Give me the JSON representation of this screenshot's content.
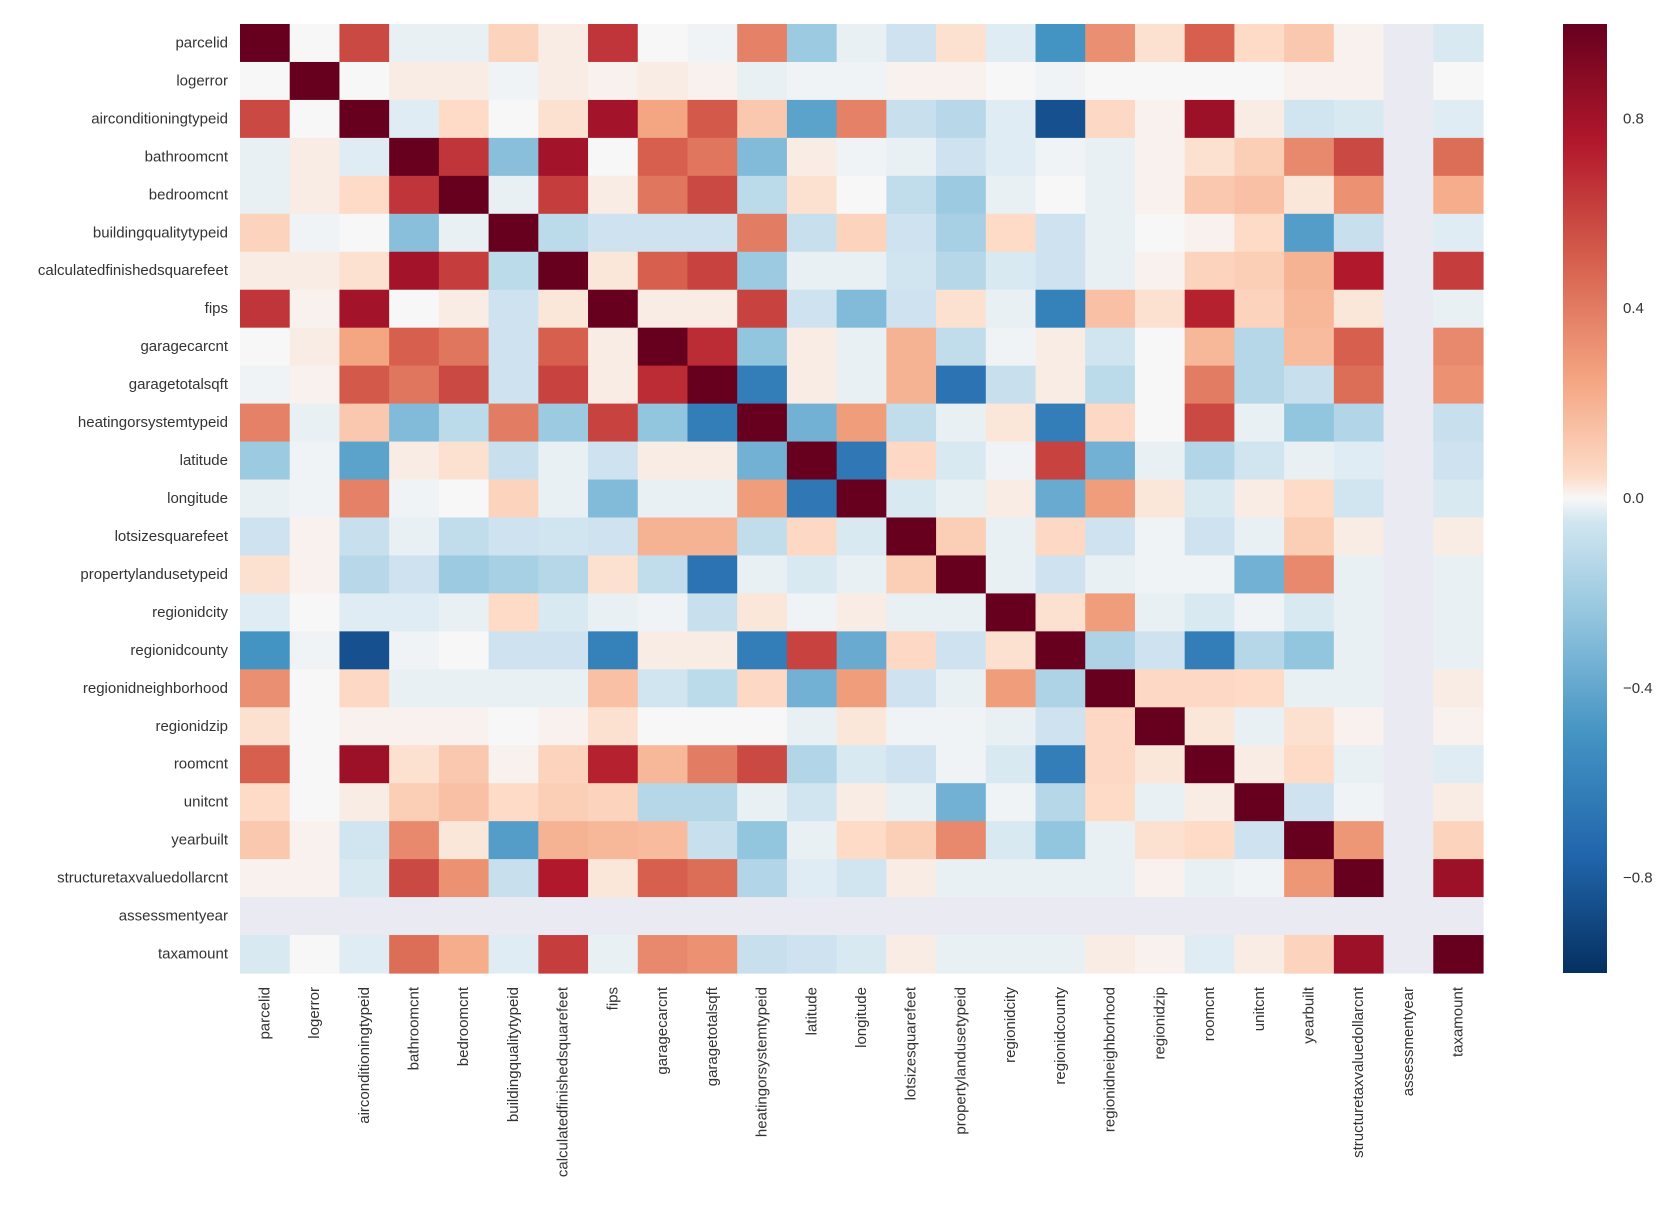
{
  "chart_data": {
    "type": "heatmap",
    "title": "",
    "xlabel": "",
    "ylabel": "",
    "labels": [
      "parcelid",
      "logerror",
      "airconditioningtypeid",
      "bathroomcnt",
      "bedroomcnt",
      "buildingqualitytypeid",
      "calculatedfinishedsquarefeet",
      "fips",
      "garagecarcnt",
      "garagetotalsqft",
      "heatingorsystemtypeid",
      "latitude",
      "longitude",
      "lotsizesquarefeet",
      "propertylandusetypeid",
      "regionidcity",
      "regionidcounty",
      "regionidneighborhood",
      "regionidzip",
      "roomcnt",
      "unitcnt",
      "yearbuilt",
      "structuretaxvaluedollarcnt",
      "assessmentyear",
      "taxamount"
    ],
    "colormap": "RdBu_r",
    "vmin": -1,
    "vmax": 1,
    "colorbar_ticks": [
      0.8,
      0.4,
      0.0,
      -0.4,
      -0.8
    ],
    "colorbar_tick_labels": [
      "0.8",
      "0.4",
      "0.0",
      "−0.4",
      "−0.8"
    ],
    "missing_color": "#eaeaf2",
    "missing_cells": "row and column for assessmentyear",
    "values": [
      [
        1.0,
        0.0,
        0.58,
        -0.02,
        -0.02,
        0.08,
        0.02,
        0.65,
        0.0,
        -0.01,
        0.38,
        -0.22,
        -0.02,
        -0.06,
        0.04,
        -0.03,
        -0.5,
        0.33,
        0.04,
        0.5,
        0.05,
        0.12,
        0.01,
        null,
        -0.04
      ],
      [
        0.0,
        1.0,
        0.0,
        0.02,
        0.02,
        -0.01,
        0.02,
        0.01,
        0.02,
        0.01,
        -0.02,
        -0.01,
        -0.01,
        0.01,
        0.01,
        0.0,
        -0.01,
        0.0,
        0.0,
        0.0,
        0.0,
        0.01,
        0.01,
        null,
        0.0
      ],
      [
        0.58,
        0.0,
        1.0,
        -0.03,
        0.05,
        0.0,
        0.04,
        0.8,
        0.25,
        0.52,
        0.12,
        -0.42,
        0.38,
        -0.08,
        -0.13,
        -0.03,
        -0.85,
        0.06,
        0.01,
        0.82,
        0.02,
        -0.05,
        -0.04,
        null,
        -0.03
      ],
      [
        -0.02,
        0.02,
        -0.03,
        1.0,
        0.65,
        -0.28,
        0.8,
        0.0,
        0.5,
        0.42,
        -0.3,
        0.02,
        -0.01,
        -0.02,
        -0.06,
        -0.03,
        -0.01,
        -0.02,
        0.01,
        0.04,
        0.1,
        0.35,
        0.58,
        null,
        0.45
      ],
      [
        -0.02,
        0.02,
        0.05,
        0.65,
        1.0,
        -0.02,
        0.62,
        0.02,
        0.42,
        0.58,
        -0.12,
        0.04,
        0.0,
        -0.1,
        -0.22,
        -0.02,
        0.0,
        -0.02,
        0.01,
        0.12,
        0.15,
        0.03,
        0.32,
        null,
        0.22
      ],
      [
        0.08,
        -0.01,
        0.0,
        -0.28,
        -0.02,
        1.0,
        -0.12,
        -0.06,
        -0.06,
        -0.06,
        0.4,
        -0.08,
        0.08,
        -0.06,
        -0.18,
        0.05,
        -0.06,
        -0.02,
        0.0,
        0.01,
        0.05,
        -0.45,
        -0.08,
        null,
        -0.03
      ],
      [
        0.02,
        0.02,
        0.04,
        0.8,
        0.62,
        -0.12,
        1.0,
        0.03,
        0.5,
        0.6,
        -0.22,
        -0.02,
        -0.02,
        -0.05,
        -0.14,
        -0.04,
        -0.06,
        -0.02,
        0.01,
        0.08,
        0.1,
        0.2,
        0.75,
        null,
        0.62
      ],
      [
        0.65,
        0.01,
        0.8,
        0.0,
        0.02,
        -0.06,
        0.03,
        1.0,
        0.02,
        0.02,
        0.6,
        -0.06,
        -0.3,
        -0.06,
        0.04,
        -0.02,
        -0.6,
        0.15,
        0.04,
        0.72,
        0.08,
        0.18,
        0.03,
        null,
        -0.02
      ],
      [
        0.0,
        0.02,
        0.25,
        0.5,
        0.42,
        -0.06,
        0.5,
        0.02,
        1.0,
        0.68,
        -0.25,
        0.02,
        -0.02,
        0.2,
        -0.1,
        -0.01,
        0.02,
        -0.05,
        0.0,
        0.18,
        -0.14,
        0.17,
        0.5,
        null,
        0.35
      ],
      [
        -0.01,
        0.01,
        0.52,
        0.42,
        0.58,
        -0.06,
        0.6,
        0.02,
        0.68,
        1.0,
        -0.62,
        0.02,
        -0.02,
        0.2,
        -0.68,
        -0.08,
        0.02,
        -0.12,
        0.0,
        0.4,
        -0.14,
        -0.08,
        0.45,
        null,
        0.32
      ],
      [
        0.38,
        -0.02,
        0.12,
        -0.3,
        -0.12,
        0.4,
        -0.22,
        0.6,
        -0.25,
        -0.62,
        1.0,
        -0.35,
        0.28,
        -0.1,
        -0.02,
        0.03,
        -0.62,
        0.06,
        0.0,
        0.58,
        -0.02,
        -0.25,
        -0.15,
        null,
        -0.08
      ],
      [
        -0.22,
        -0.01,
        -0.42,
        0.02,
        0.04,
        -0.08,
        -0.02,
        -0.06,
        0.02,
        0.02,
        -0.35,
        1.0,
        -0.65,
        0.06,
        -0.04,
        -0.01,
        0.6,
        -0.35,
        -0.02,
        -0.15,
        -0.05,
        -0.02,
        -0.03,
        null,
        -0.06
      ],
      [
        -0.02,
        -0.01,
        0.38,
        -0.01,
        0.0,
        0.08,
        -0.02,
        -0.3,
        -0.02,
        -0.02,
        0.28,
        -0.65,
        1.0,
        -0.04,
        -0.02,
        0.02,
        -0.38,
        0.28,
        0.03,
        -0.04,
        0.02,
        0.05,
        -0.05,
        null,
        -0.04
      ],
      [
        -0.06,
        0.01,
        -0.08,
        -0.02,
        -0.1,
        -0.06,
        -0.05,
        -0.06,
        0.2,
        0.2,
        -0.1,
        0.06,
        -0.04,
        1.0,
        0.1,
        -0.02,
        0.06,
        -0.06,
        -0.01,
        -0.06,
        -0.02,
        0.1,
        0.02,
        null,
        0.02
      ],
      [
        0.04,
        0.01,
        -0.13,
        -0.06,
        -0.22,
        -0.18,
        -0.14,
        0.04,
        -0.1,
        -0.68,
        -0.02,
        -0.04,
        -0.02,
        0.1,
        1.0,
        -0.02,
        -0.06,
        -0.02,
        -0.01,
        -0.01,
        -0.35,
        0.35,
        -0.02,
        null,
        -0.02
      ],
      [
        -0.03,
        0.0,
        -0.03,
        -0.03,
        -0.02,
        0.05,
        -0.04,
        -0.02,
        -0.01,
        -0.08,
        0.03,
        -0.01,
        0.02,
        -0.02,
        -0.02,
        1.0,
        0.04,
        0.28,
        -0.02,
        -0.04,
        -0.01,
        -0.04,
        -0.02,
        null,
        -0.02
      ],
      [
        -0.5,
        -0.01,
        -0.85,
        -0.01,
        0.0,
        -0.06,
        -0.06,
        -0.6,
        0.02,
        0.02,
        -0.62,
        0.6,
        -0.38,
        0.06,
        -0.06,
        0.04,
        1.0,
        -0.16,
        -0.06,
        -0.62,
        -0.14,
        -0.25,
        -0.02,
        null,
        -0.02
      ],
      [
        0.33,
        0.0,
        0.06,
        -0.02,
        -0.02,
        -0.02,
        -0.02,
        0.15,
        -0.05,
        -0.12,
        0.06,
        -0.35,
        0.28,
        -0.06,
        -0.02,
        0.28,
        -0.16,
        1.0,
        0.06,
        0.06,
        0.05,
        -0.02,
        -0.02,
        null,
        0.02
      ],
      [
        0.04,
        0.0,
        0.01,
        0.01,
        0.01,
        0.0,
        0.01,
        0.04,
        0.0,
        0.0,
        0.0,
        -0.02,
        0.03,
        -0.01,
        -0.01,
        -0.02,
        -0.06,
        0.06,
        1.0,
        0.03,
        -0.02,
        0.04,
        0.01,
        null,
        0.01
      ],
      [
        0.5,
        0.0,
        0.82,
        0.04,
        0.12,
        0.01,
        0.08,
        0.72,
        0.18,
        0.4,
        0.58,
        -0.15,
        -0.04,
        -0.06,
        -0.01,
        -0.04,
        -0.62,
        0.06,
        0.03,
        1.0,
        0.02,
        0.05,
        -0.02,
        null,
        -0.03
      ],
      [
        0.05,
        0.0,
        0.02,
        0.1,
        0.15,
        0.05,
        0.1,
        0.08,
        -0.14,
        -0.14,
        -0.02,
        -0.05,
        0.02,
        -0.02,
        -0.35,
        -0.01,
        -0.14,
        0.05,
        -0.02,
        0.02,
        1.0,
        -0.06,
        -0.01,
        null,
        0.02
      ],
      [
        0.12,
        0.01,
        -0.05,
        0.35,
        0.03,
        -0.45,
        0.2,
        0.18,
        0.17,
        -0.08,
        -0.25,
        -0.02,
        0.05,
        0.1,
        0.35,
        -0.04,
        -0.25,
        -0.02,
        0.04,
        0.05,
        -0.06,
        1.0,
        0.3,
        null,
        0.08
      ],
      [
        0.01,
        0.01,
        -0.04,
        0.58,
        0.32,
        -0.08,
        0.75,
        0.03,
        0.5,
        0.45,
        -0.15,
        -0.03,
        -0.05,
        0.02,
        -0.02,
        -0.02,
        -0.02,
        -0.02,
        0.01,
        -0.02,
        -0.01,
        0.3,
        1.0,
        null,
        0.82
      ],
      [
        null,
        null,
        null,
        null,
        null,
        null,
        null,
        null,
        null,
        null,
        null,
        null,
        null,
        null,
        null,
        null,
        null,
        null,
        null,
        null,
        null,
        null,
        null,
        null,
        null
      ],
      [
        -0.04,
        0.0,
        -0.03,
        0.45,
        0.22,
        -0.03,
        0.62,
        -0.02,
        0.35,
        0.32,
        -0.08,
        -0.06,
        -0.04,
        0.02,
        -0.02,
        -0.02,
        -0.02,
        0.02,
        0.01,
        -0.03,
        0.02,
        0.08,
        0.82,
        null,
        1.0
      ]
    ]
  }
}
